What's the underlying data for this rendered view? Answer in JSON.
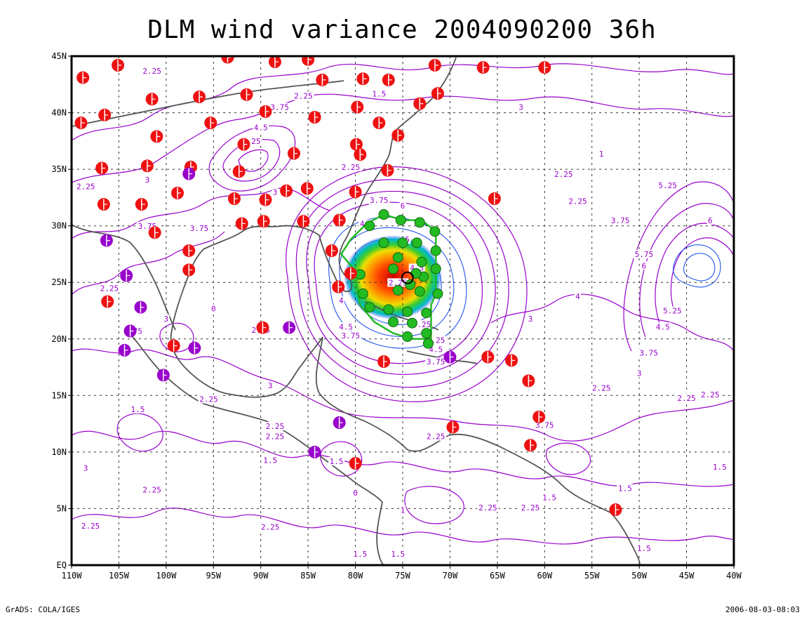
{
  "title": "DLM wind variance 2004090200 36h",
  "footer": {
    "credit": "GrADS: COLA/IGES",
    "timestamp": "2006-08-03-08:03"
  },
  "axes": {
    "lon_labels": [
      "110W",
      "105W",
      "100W",
      "95W",
      "90W",
      "85W",
      "80W",
      "75W",
      "70W",
      "65W",
      "60W",
      "55W",
      "50W",
      "45W",
      "40W"
    ],
    "lat_labels": [
      "45N",
      "40N",
      "35N",
      "30N",
      "25N",
      "20N",
      "15N",
      "10N",
      "5N",
      "EQ"
    ]
  },
  "colors": {
    "contour_purple": "#9900cc",
    "contour_blue": "#2255ee",
    "coast": "#555555",
    "station_red": "#ee1111",
    "station_purple": "#9900cc",
    "track_green": "#22bb22",
    "grid": "#333333"
  },
  "contour_labels": [
    {
      "t": "2.25",
      "lon": -101.5,
      "lat": 43.5
    },
    {
      "t": "2.25",
      "lon": -85.5,
      "lat": 41.3
    },
    {
      "t": "1.5",
      "lon": -77.5,
      "lat": 41.5
    },
    {
      "t": "3.75",
      "lon": -88,
      "lat": 40.3
    },
    {
      "t": "3",
      "lon": -62.5,
      "lat": 40.3
    },
    {
      "t": "4.5",
      "lon": -90,
      "lat": 38.5
    },
    {
      "t": "5.25",
      "lon": -91,
      "lat": 37.3
    },
    {
      "t": "2.25",
      "lon": -80.5,
      "lat": 35
    },
    {
      "t": "3",
      "lon": -88.5,
      "lat": 32.8
    },
    {
      "t": "2.25",
      "lon": -108.5,
      "lat": 33.3
    },
    {
      "t": "3",
      "lon": -102,
      "lat": 33.9
    },
    {
      "t": "3.75",
      "lon": -77.5,
      "lat": 32.1
    },
    {
      "t": "6",
      "lon": -75,
      "lat": 31.6
    },
    {
      "t": "4.5",
      "lon": -78.8,
      "lat": 30
    },
    {
      "t": "3.75",
      "lon": -102,
      "lat": 29.8
    },
    {
      "t": "3.75",
      "lon": -96.5,
      "lat": 29.6
    },
    {
      "t": "5",
      "lon": -74.5,
      "lat": 28.6
    },
    {
      "t": "4.5",
      "lon": -73.5,
      "lat": 26.1
    },
    {
      "t": "2.25",
      "lon": -75.5,
      "lat": 24.8
    },
    {
      "t": "4",
      "lon": -81.5,
      "lat": 23.2
    },
    {
      "t": "4.5",
      "lon": -81,
      "lat": 20.9
    },
    {
      "t": "3.75",
      "lon": -80.5,
      "lat": 20.1
    },
    {
      "t": "4.25",
      "lon": -73,
      "lat": 21.1
    },
    {
      "t": "5.25",
      "lon": -71.5,
      "lat": 19.7
    },
    {
      "t": "4.5",
      "lon": -71.5,
      "lat": 18.9
    },
    {
      "t": "3.75",
      "lon": -71.5,
      "lat": 17.8
    },
    {
      "t": "2.25",
      "lon": -106,
      "lat": 24.3
    },
    {
      "t": "3",
      "lon": -100,
      "lat": 21.6
    },
    {
      "t": "3.75",
      "lon": -103.5,
      "lat": 20.5
    },
    {
      "t": "2.25",
      "lon": -90,
      "lat": 20.6
    },
    {
      "t": "0",
      "lon": -95,
      "lat": 22.5
    },
    {
      "t": "1.5",
      "lon": -103,
      "lat": 13.6
    },
    {
      "t": "2.25",
      "lon": -95.5,
      "lat": 14.5
    },
    {
      "t": "3",
      "lon": -89,
      "lat": 15.7
    },
    {
      "t": "2.25",
      "lon": -88.5,
      "lat": 12.1
    },
    {
      "t": "2.25",
      "lon": -88.5,
      "lat": 11.2
    },
    {
      "t": "1.5",
      "lon": -89,
      "lat": 9.1
    },
    {
      "t": "1.5",
      "lon": -82,
      "lat": 9
    },
    {
      "t": "2.25",
      "lon": -71.5,
      "lat": 11.2
    },
    {
      "t": "3",
      "lon": -108.5,
      "lat": 8.4
    },
    {
      "t": "2.25",
      "lon": -101.5,
      "lat": 6.5
    },
    {
      "t": "2.25",
      "lon": -108,
      "lat": 3.3
    },
    {
      "t": "2.25",
      "lon": -89,
      "lat": 3.2
    },
    {
      "t": "2.25",
      "lon": -66,
      "lat": 4.9
    },
    {
      "t": "2.25",
      "lon": -61.5,
      "lat": 4.9
    },
    {
      "t": "1.5",
      "lon": -59.5,
      "lat": 5.8
    },
    {
      "t": "1.5",
      "lon": -79.5,
      "lat": 0.8
    },
    {
      "t": "1.5",
      "lon": -75.5,
      "lat": 0.8
    },
    {
      "t": "1",
      "lon": -75,
      "lat": 4.7
    },
    {
      "t": "0",
      "lon": -80,
      "lat": 6.2
    },
    {
      "t": "3.75",
      "lon": -60,
      "lat": 12.2
    },
    {
      "t": "1.5",
      "lon": -41.5,
      "lat": 8.5
    },
    {
      "t": "1.5",
      "lon": -51.5,
      "lat": 6.6
    },
    {
      "t": "1.5",
      "lon": -49.5,
      "lat": 1.3
    },
    {
      "t": "2.25",
      "lon": -54,
      "lat": 15.5
    },
    {
      "t": "3",
      "lon": -50,
      "lat": 16.8
    },
    {
      "t": "3.75",
      "lon": -49,
      "lat": 18.6
    },
    {
      "t": "2.25",
      "lon": -45,
      "lat": 14.6
    },
    {
      "t": "2.25",
      "lon": -42.5,
      "lat": 14.9
    },
    {
      "t": "4.5",
      "lon": -47.5,
      "lat": 20.9
    },
    {
      "t": "5.25",
      "lon": -46.5,
      "lat": 22.3
    },
    {
      "t": "3",
      "lon": -61.5,
      "lat": 21.6
    },
    {
      "t": "4",
      "lon": -56.5,
      "lat": 23.6
    },
    {
      "t": "3.75",
      "lon": -52,
      "lat": 30.3
    },
    {
      "t": "5.75",
      "lon": -49.5,
      "lat": 27.3
    },
    {
      "t": "6",
      "lon": -49.5,
      "lat": 26.3
    },
    {
      "t": "5.25",
      "lon": -47,
      "lat": 33.4
    },
    {
      "t": "6",
      "lon": -42.5,
      "lat": 30.3
    },
    {
      "t": "2.25",
      "lon": -58,
      "lat": 34.4
    },
    {
      "t": "2.25",
      "lon": -56.5,
      "lat": 32
    },
    {
      "t": "1",
      "lon": -54,
      "lat": 36.2
    }
  ],
  "stations_red": [
    [
      -108.8,
      43.1
    ],
    [
      -105.1,
      44.2
    ],
    [
      -93.5,
      44.9
    ],
    [
      -88.5,
      44.5
    ],
    [
      -85,
      44.7
    ],
    [
      -101.5,
      41.2
    ],
    [
      -96.5,
      41.4
    ],
    [
      -91.5,
      41.6
    ],
    [
      -83.5,
      42.9
    ],
    [
      -79.2,
      43
    ],
    [
      -76.5,
      42.9
    ],
    [
      -71.6,
      44.2
    ],
    [
      -66.5,
      44
    ],
    [
      -60,
      44
    ],
    [
      -71.3,
      41.7
    ],
    [
      -73.2,
      40.8
    ],
    [
      -79.8,
      40.5
    ],
    [
      -89.5,
      40.1
    ],
    [
      -106.5,
      39.8
    ],
    [
      -109,
      39.1
    ],
    [
      -95.3,
      39.1
    ],
    [
      -84.3,
      39.6
    ],
    [
      -77.5,
      39.1
    ],
    [
      -75.5,
      38
    ],
    [
      -101,
      37.9
    ],
    [
      -91.8,
      37.2
    ],
    [
      -79.9,
      37.2
    ],
    [
      -79.5,
      36.3
    ],
    [
      -86.5,
      36.4
    ],
    [
      -106.8,
      35.1
    ],
    [
      -102,
      35.3
    ],
    [
      -97.4,
      35.2
    ],
    [
      -92.3,
      34.8
    ],
    [
      -76.6,
      34.9
    ],
    [
      -80,
      33
    ],
    [
      -85.1,
      33.3
    ],
    [
      -89.5,
      32.3
    ],
    [
      -92.8,
      32.4
    ],
    [
      -87.3,
      33.1
    ],
    [
      -98.8,
      32.9
    ],
    [
      -106.6,
      31.9
    ],
    [
      -102.6,
      31.9
    ],
    [
      -65.3,
      32.4
    ],
    [
      -92,
      30.2
    ],
    [
      -85.5,
      30.4
    ],
    [
      -81.7,
      30.5
    ],
    [
      -89.7,
      30.4
    ],
    [
      -101.2,
      29.4
    ],
    [
      -97.6,
      27.8
    ],
    [
      -82.5,
      27.8
    ],
    [
      -80.5,
      25.8
    ],
    [
      -97.6,
      26.1
    ],
    [
      -81.8,
      24.6
    ],
    [
      -106.2,
      23.3
    ],
    [
      -89.8,
      21
    ],
    [
      -99.2,
      19.4
    ],
    [
      -77,
      18
    ],
    [
      -66,
      18.4
    ],
    [
      -63.5,
      18.1
    ],
    [
      -61.7,
      16.3
    ],
    [
      -69.7,
      12.2
    ],
    [
      -60.6,
      13.1
    ],
    [
      -61.5,
      10.6
    ],
    [
      -80,
      9
    ],
    [
      -52.5,
      4.9
    ]
  ],
  "stations_purple": [
    [
      -97.6,
      34.6
    ],
    [
      -106.3,
      28.7
    ],
    [
      -104.2,
      25.6
    ],
    [
      -102.7,
      22.8
    ],
    [
      -103.8,
      20.7
    ],
    [
      -104.4,
      19
    ],
    [
      -97,
      19.2
    ],
    [
      -87,
      21
    ],
    [
      -100.3,
      16.8
    ],
    [
      -81.7,
      12.6
    ],
    [
      -84.3,
      10
    ],
    [
      -70,
      18.4
    ]
  ],
  "track": [
    [
      -80,
      26
    ],
    [
      -81.5,
      27.5
    ],
    [
      -80.5,
      28.8
    ],
    [
      -78.8,
      30.2
    ],
    [
      -77,
      31
    ],
    [
      -75,
      30.5
    ],
    [
      -73,
      30.5
    ],
    [
      -71.5,
      29.5
    ],
    [
      -71.5,
      28.5
    ],
    [
      -71.5,
      27
    ],
    [
      -71.5,
      25.5
    ],
    [
      -71.5,
      24
    ],
    [
      -72,
      23
    ],
    [
      -72,
      22
    ],
    [
      -72,
      21
    ],
    [
      -72,
      20
    ],
    [
      -74,
      20
    ],
    [
      -76,
      20.5
    ],
    [
      -78,
      21.5
    ],
    [
      -79.5,
      23
    ],
    [
      -79.8,
      24.5
    ],
    [
      -80,
      26
    ]
  ],
  "track_dots": [
    [
      -78.5,
      30
    ],
    [
      -77,
      31
    ],
    [
      -75.2,
      30.5
    ],
    [
      -73.2,
      30.3
    ],
    [
      -71.6,
      29.5
    ],
    [
      -77,
      28.5
    ],
    [
      -75,
      28.5
    ],
    [
      -73.5,
      28.5
    ],
    [
      -71.5,
      27.8
    ],
    [
      -75.5,
      27.2
    ],
    [
      -73,
      26.8
    ],
    [
      -71.5,
      26.2
    ],
    [
      -79.5,
      25.7
    ],
    [
      -76,
      26.2
    ],
    [
      -72.8,
      25.5
    ],
    [
      -79.2,
      24
    ],
    [
      -75.5,
      24.3
    ],
    [
      -73.2,
      24.2
    ],
    [
      -71.3,
      24
    ],
    [
      -78.5,
      22.8
    ],
    [
      -76.5,
      22.6
    ],
    [
      -74.5,
      22.4
    ],
    [
      -72.5,
      22.3
    ],
    [
      -76,
      21.5
    ],
    [
      -74,
      21.4
    ],
    [
      -72.5,
      20.5
    ],
    [
      -74.5,
      20.2
    ],
    [
      -72.3,
      19.6
    ],
    [
      -74.2,
      24.8
    ],
    [
      -73.6,
      25.8
    ]
  ],
  "storm_center": {
    "lon": -74.5,
    "lat": 25.4
  }
}
